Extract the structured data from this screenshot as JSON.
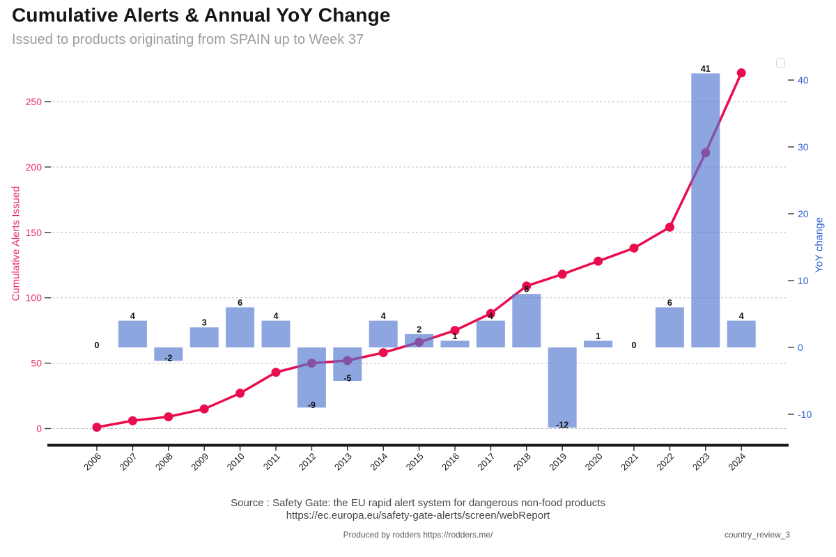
{
  "header": {
    "title": "Cumulative Alerts & Annual YoY Change",
    "subtitle": "Issued to products originating from SPAIN up to Week 37"
  },
  "chart_data": {
    "type": "composite-bar-line",
    "categories": [
      "2006",
      "2007",
      "2008",
      "2009",
      "2010",
      "2011",
      "2012",
      "2013",
      "2014",
      "2015",
      "2016",
      "2017",
      "2018",
      "2019",
      "2020",
      "2021",
      "2022",
      "2023",
      "2024"
    ],
    "series": [
      {
        "name": "YoY change",
        "type": "bar",
        "axis": "right",
        "color": "rgba(81,118,207,0.65)",
        "values": [
          0,
          4,
          -2,
          3,
          6,
          4,
          -9,
          -5,
          4,
          2,
          1,
          4,
          8,
          -12,
          1,
          0,
          6,
          41,
          4
        ]
      },
      {
        "name": "Cumulative Alerts Issued",
        "type": "line",
        "axis": "left",
        "color": "#ea0d4e",
        "values": [
          1,
          6,
          9,
          15,
          27,
          43,
          50,
          52,
          58,
          66,
          75,
          88,
          109,
          118,
          128,
          138,
          154,
          211,
          272
        ]
      }
    ],
    "left_axis": {
      "label": "Cumulative Alerts Issued",
      "ticks": [
        0,
        50,
        100,
        150,
        200,
        250
      ],
      "range": [
        0,
        278
      ],
      "color": "#e73060"
    },
    "right_axis": {
      "label": "YoY change",
      "ticks": [
        -10,
        0,
        10,
        20,
        30,
        40
      ],
      "range": [
        -14,
        43
      ],
      "color": "#2c5ed2"
    },
    "x_axis": {
      "tick_angle": -45,
      "color": "#161616"
    },
    "grid": {
      "horizontal": true,
      "style": "dashed",
      "color": "#bcbcbc"
    },
    "bar_value_labels": true,
    "legend": {
      "visible": true,
      "empty": true,
      "position": "top-right"
    }
  },
  "footer": {
    "source_line1": "Source : Safety Gate: the EU rapid alert system for dangerous non-food products",
    "source_line2": "https://ec.europa.eu/safety-gate-alerts/screen/webReport",
    "produced_by": "Produced by rodders https://rodders.me/",
    "doc_ref": "country_review_3"
  }
}
